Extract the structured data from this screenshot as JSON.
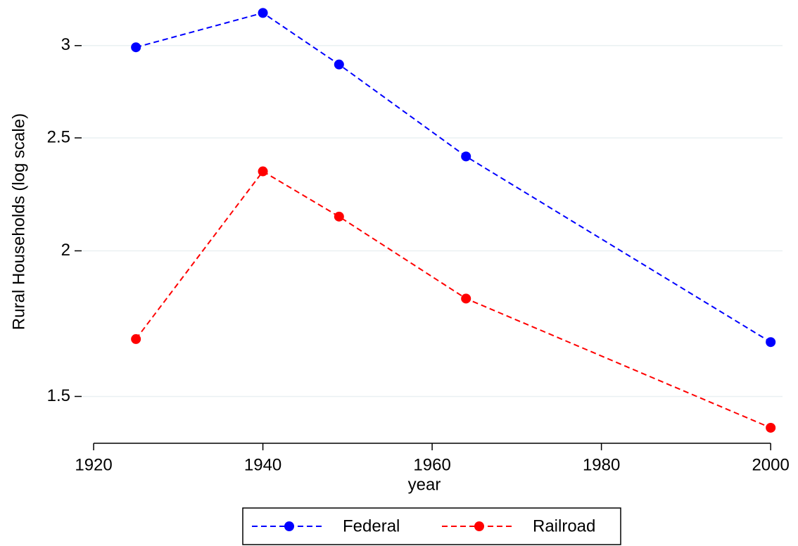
{
  "chart_data": {
    "type": "line",
    "y_label": "Rural Households (log scale)",
    "x_label": "year",
    "x": [
      1925,
      1940,
      1949,
      1964,
      2000
    ],
    "series": [
      {
        "name": "Federal",
        "color": "#0000ff",
        "values": [
          2.99,
          3.2,
          2.89,
          2.41,
          1.67
        ]
      },
      {
        "name": "Railroad",
        "color": "#ff0000",
        "values": [
          1.68,
          2.34,
          2.14,
          1.82,
          1.41
        ]
      }
    ],
    "xlim": [
      1918.25,
      2001.4
    ],
    "xticks": [
      1920,
      1940,
      1960,
      1980,
      2000
    ],
    "ylim": [
      1.377,
      3.26
    ],
    "yticks": [
      1.5,
      2,
      2.5,
      3
    ],
    "y_scale": "log",
    "grid": true,
    "legend": "bottom"
  }
}
